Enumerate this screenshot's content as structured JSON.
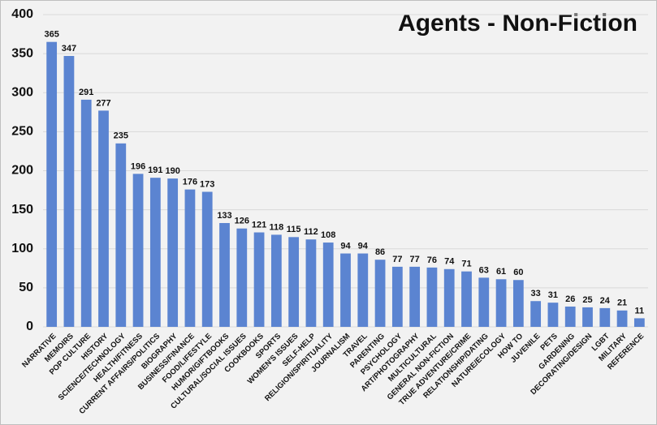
{
  "chart_data": {
    "type": "bar",
    "title": "Agents - Non-Fiction",
    "categories": [
      "NARRATIVE",
      "MEMOIRS",
      "POP CULTURE",
      "HISTORY",
      "SCIENCE/TECHNOLOGY",
      "HEALTH/FITNESS",
      "CURRENT AFFAIRS/POLITICS",
      "BIOGRAPHY",
      "BUSINESS/FINANCE",
      "FOOD/LIFESTYLE",
      "HUMOR/GIFTBOOKS",
      "CULTURAL/SOCIAL ISSUES",
      "COOKBOOKS",
      "SPORTS",
      "WOMEN'S ISSUES",
      "SELF-HELP",
      "RELIGION/SPIRITUALITY",
      "JOURNALISM",
      "TRAVEL",
      "PARENTING",
      "PSYCHOLOGY",
      "ART/PHOTOGRAPHY",
      "MULTICULTURAL",
      "GENERAL NON-FICTION",
      "TRUE ADVENTURE/CRIME",
      "RELATIONSHIP/DATING",
      "NATURE/ECOLOGY",
      "HOW TO",
      "JUVENILE",
      "PETS",
      "GARDENING",
      "DECORATING/DESIGN",
      "LGBT",
      "MILITARY",
      "REFERENCE"
    ],
    "values": [
      365,
      347,
      291,
      277,
      235,
      196,
      191,
      190,
      176,
      173,
      133,
      126,
      121,
      118,
      115,
      112,
      108,
      94,
      94,
      86,
      77,
      77,
      76,
      74,
      71,
      63,
      61,
      60,
      33,
      31,
      26,
      25,
      24,
      21,
      11
    ],
    "color": "#5b84d1",
    "ylim": [
      0,
      400
    ],
    "yticks": [
      0,
      50,
      100,
      150,
      200,
      250,
      300,
      350,
      400
    ],
    "grid": true
  }
}
